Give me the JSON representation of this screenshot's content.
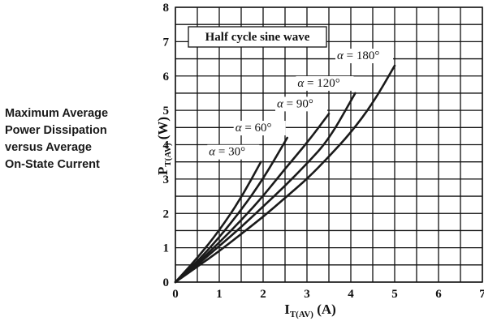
{
  "side_title": [
    "Maximum Average",
    "Power Dissipation",
    "versus Average",
    "On-State Current"
  ],
  "chart_data": {
    "type": "line",
    "title": "Half cycle sine wave",
    "xlabel": {
      "main": "I",
      "sub": "T(AV)",
      "unit": " (A)"
    },
    "ylabel": {
      "main": "P",
      "sub": "T(AV)",
      "unit": " (W)"
    },
    "xlim": [
      0,
      7
    ],
    "ylim": [
      0,
      8
    ],
    "x_minor_step": 0.5,
    "y_minor_step": 0.5,
    "xticks": [
      0,
      1,
      2,
      3,
      4,
      5,
      6,
      7
    ],
    "yticks": [
      0,
      1,
      2,
      3,
      4,
      5,
      6,
      7,
      8
    ],
    "grid": true,
    "series": [
      {
        "name": "α = 30°",
        "label_prefix": "α",
        "label_value": "= 30°",
        "points": [
          [
            0,
            0
          ],
          [
            0.5,
            0.7
          ],
          [
            1.0,
            1.5
          ],
          [
            1.5,
            2.45
          ],
          [
            1.95,
            3.5
          ]
        ]
      },
      {
        "name": "α = 60°",
        "label_prefix": "α",
        "label_value": "= 60°",
        "points": [
          [
            0,
            0
          ],
          [
            0.5,
            0.6
          ],
          [
            1.0,
            1.3
          ],
          [
            1.5,
            2.1
          ],
          [
            2.0,
            3.0
          ],
          [
            2.55,
            4.2
          ]
        ]
      },
      {
        "name": "α = 90°",
        "label_prefix": "α",
        "label_value": "= 90°",
        "points": [
          [
            0,
            0
          ],
          [
            0.5,
            0.55
          ],
          [
            1.0,
            1.15
          ],
          [
            1.5,
            1.8
          ],
          [
            2.0,
            2.5
          ],
          [
            2.5,
            3.3
          ],
          [
            3.0,
            4.05
          ],
          [
            3.5,
            4.9
          ]
        ]
      },
      {
        "name": "α = 120°",
        "label_prefix": "α",
        "label_value": "= 120°",
        "points": [
          [
            0,
            0
          ],
          [
            0.5,
            0.5
          ],
          [
            1.0,
            1.05
          ],
          [
            1.5,
            1.6
          ],
          [
            2.0,
            2.2
          ],
          [
            2.5,
            2.8
          ],
          [
            3.0,
            3.45
          ],
          [
            3.5,
            4.15
          ],
          [
            4.1,
            5.5
          ]
        ]
      },
      {
        "name": "α = 180°",
        "label_prefix": "α",
        "label_value": "= 180°",
        "points": [
          [
            0,
            0
          ],
          [
            0.5,
            0.45
          ],
          [
            1.0,
            0.9
          ],
          [
            1.5,
            1.4
          ],
          [
            2.0,
            1.9
          ],
          [
            2.5,
            2.45
          ],
          [
            3.0,
            3.0
          ],
          [
            3.5,
            3.65
          ],
          [
            4.0,
            4.35
          ],
          [
            4.5,
            5.2
          ],
          [
            5.0,
            6.3
          ]
        ]
      }
    ]
  }
}
